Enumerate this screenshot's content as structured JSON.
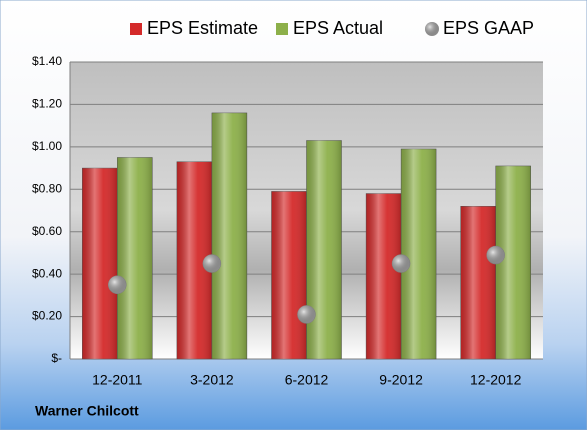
{
  "chart_data": {
    "type": "bar",
    "annotation": "Warner Chilcott",
    "categories": [
      "12-2011",
      "3-2012",
      "6-2012",
      "9-2012",
      "12-2012"
    ],
    "series": [
      {
        "name": "EPS Estimate",
        "color": "#d42a2a",
        "values": [
          0.9,
          0.93,
          0.79,
          0.78,
          0.72
        ]
      },
      {
        "name": "EPS Actual",
        "color": "#8db04a",
        "values": [
          0.95,
          1.16,
          1.03,
          0.99,
          0.91
        ]
      },
      {
        "name": "EPS GAAP",
        "color": "#a8a8a8",
        "type": "scatter",
        "values": [
          0.35,
          0.45,
          0.21,
          0.45,
          0.49
        ]
      }
    ],
    "ylim": [
      0,
      1.4
    ],
    "yticks": [
      {
        "value": 0,
        "label": "$-"
      },
      {
        "value": 0.2,
        "label": "$0.20"
      },
      {
        "value": 0.4,
        "label": "$0.40"
      },
      {
        "value": 0.6,
        "label": "$0.60"
      },
      {
        "value": 0.8,
        "label": "$0.80"
      },
      {
        "value": 1.0,
        "label": "$1.00"
      },
      {
        "value": 1.2,
        "label": "$1.20"
      },
      {
        "value": 1.4,
        "label": "$1.40"
      }
    ],
    "grid": true,
    "legend": "top"
  }
}
